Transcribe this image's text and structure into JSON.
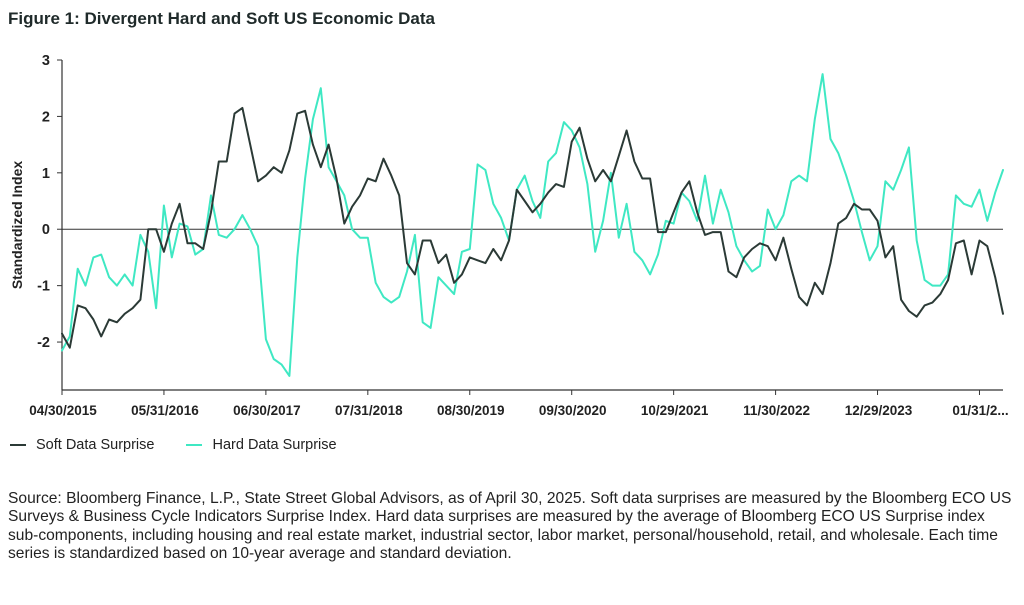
{
  "figure_title": "Figure 1: Divergent Hard and Soft US Economic Data",
  "source_note": "Source: Bloomberg Finance, L.P., State Street Global Advisors, as of April 30, 2025. Soft data surprises are measured by the Bloomberg ECO US Surveys & Business Cycle Indicators Surprise Index. Hard data surprises are measured by the average of Bloomberg ECO US Surprise index sub-components, including housing and real estate market, industrial sector, labor market, personal/household, retail, and wholesale. Each time series is standardized based on 10-year average and standard deviation.",
  "colors": {
    "soft": "#2b3a36",
    "hard": "#3fe8c3",
    "axis": "#333333",
    "zero": "#333333"
  },
  "chart_data": {
    "type": "line",
    "title": "Figure 1: Divergent Hard and Soft US Economic Data",
    "xlabel": "",
    "ylabel": "Standardized Index",
    "ylim": [
      -2.85,
      3
    ],
    "yticks": [
      "3",
      "2",
      "1",
      "0",
      "-1",
      "-2"
    ],
    "ytick_values": [
      3,
      2,
      1,
      0,
      -1,
      -2
    ],
    "x_tick_labels": [
      "04/30/2015",
      "05/31/2016",
      "06/30/2017",
      "07/31/2018",
      "08/30/2019",
      "09/30/2020",
      "10/29/2021",
      "11/30/2022",
      "12/29/2023",
      "01/31/2..."
    ],
    "x_tick_month_index": [
      0,
      13,
      26,
      39,
      52,
      65,
      78,
      91,
      104,
      117
    ],
    "x_range_months": [
      0,
      120
    ],
    "legend_position": "bottom-left",
    "series": [
      {
        "name": "Soft Data Surprise",
        "values": [
          -1.85,
          -2.1,
          -1.35,
          -1.4,
          -1.6,
          -1.9,
          -1.6,
          -1.65,
          -1.5,
          -1.4,
          -1.25,
          0.0,
          0.0,
          -0.4,
          0.1,
          0.45,
          -0.25,
          -0.25,
          -0.35,
          0.3,
          1.2,
          1.2,
          2.05,
          2.15,
          1.5,
          0.85,
          0.95,
          1.1,
          1.0,
          1.4,
          2.05,
          2.1,
          1.5,
          1.1,
          1.5,
          0.9,
          0.1,
          0.4,
          0.6,
          0.9,
          0.85,
          1.25,
          0.95,
          0.6,
          -0.6,
          -0.8,
          -0.2,
          -0.2,
          -0.6,
          -0.45,
          -0.95,
          -0.8,
          -0.5,
          -0.55,
          -0.6,
          -0.35,
          -0.55,
          -0.2,
          0.7,
          0.5,
          0.3,
          0.45,
          0.65,
          0.8,
          0.75,
          1.55,
          1.8,
          1.25,
          0.85,
          1.05,
          0.85,
          1.3,
          1.75,
          1.2,
          0.9,
          0.9,
          -0.05,
          -0.05,
          0.3,
          0.65,
          0.85,
          0.3,
          -0.1,
          -0.05,
          -0.05,
          -0.75,
          -0.85,
          -0.5,
          -0.35,
          -0.25,
          -0.3,
          -0.55,
          -0.15,
          -0.7,
          -1.2,
          -1.35,
          -0.95,
          -1.15,
          -0.6,
          0.1,
          0.2,
          0.45,
          0.35,
          0.35,
          0.15,
          -0.5,
          -0.3,
          -1.25,
          -1.45,
          -1.55,
          -1.35,
          -1.3,
          -1.15,
          -0.9,
          -0.25,
          -0.2,
          -0.8,
          -0.2,
          -0.3,
          -0.85,
          -1.5
        ]
      },
      {
        "name": "Hard Data Surprise",
        "values": [
          -2.15,
          -1.9,
          -0.7,
          -1.0,
          -0.5,
          -0.45,
          -0.85,
          -1.0,
          -0.8,
          -1.0,
          -0.1,
          -0.4,
          -1.4,
          0.42,
          -0.5,
          0.1,
          0.05,
          -0.45,
          -0.35,
          0.6,
          -0.1,
          -0.15,
          0.0,
          0.25,
          0.0,
          -0.3,
          -1.95,
          -2.3,
          -2.4,
          -2.6,
          -0.5,
          0.9,
          1.95,
          2.5,
          1.1,
          0.85,
          0.6,
          0.0,
          -0.15,
          -0.15,
          -0.95,
          -1.2,
          -1.3,
          -1.2,
          -0.75,
          -0.1,
          -1.65,
          -1.75,
          -0.85,
          -1.0,
          -1.15,
          -0.4,
          -0.35,
          1.15,
          1.05,
          0.45,
          0.2,
          -0.2,
          0.7,
          0.95,
          0.5,
          0.2,
          1.2,
          1.35,
          1.9,
          1.75,
          1.45,
          0.8,
          -0.4,
          0.15,
          1.0,
          -0.15,
          0.45,
          -0.4,
          -0.55,
          -0.8,
          -0.45,
          0.15,
          0.1,
          0.65,
          0.5,
          0.15,
          0.95,
          0.1,
          0.7,
          0.3,
          -0.3,
          -0.55,
          -0.75,
          -0.65,
          0.35,
          0.0,
          0.25,
          0.85,
          0.95,
          0.85,
          1.95,
          2.75,
          1.6,
          1.35,
          0.95,
          0.5,
          -0.05,
          -0.55,
          -0.3,
          0.85,
          0.7,
          1.05,
          1.45,
          -0.2,
          -0.9,
          -1.0,
          -1.0,
          -0.8,
          0.6,
          0.45,
          0.4,
          0.7,
          0.15,
          0.65,
          1.05
        ]
      }
    ]
  }
}
